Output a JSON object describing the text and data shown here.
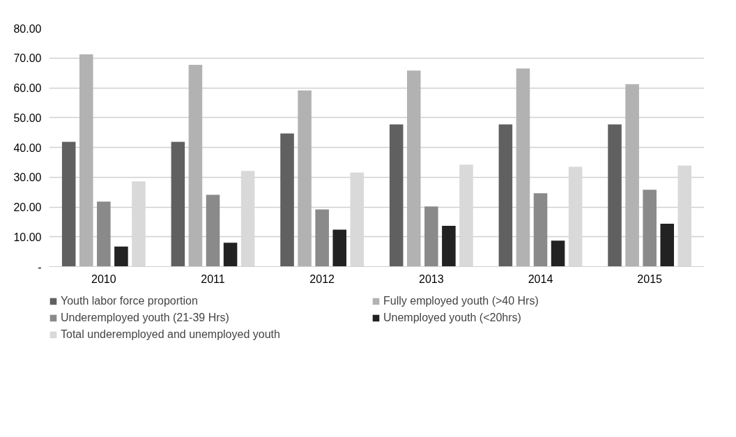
{
  "chart_data": {
    "type": "bar",
    "categories": [
      "2010",
      "2011",
      "2012",
      "2013",
      "2014",
      "2015"
    ],
    "series": [
      {
        "name": "Youth labor force proportion",
        "color": "#606060",
        "values": [
          41.9,
          41.9,
          44.7,
          47.7,
          47.7,
          47.7
        ]
      },
      {
        "name": "Fully employed youth (>40 Hrs)",
        "color": "#b2b2b2",
        "values": [
          71.2,
          67.7,
          59.1,
          65.8,
          66.5,
          61.2
        ]
      },
      {
        "name": "Underemployed youth (21-39 Hrs)",
        "color": "#8a8a8a",
        "values": [
          21.8,
          24.1,
          19.2,
          20.2,
          24.6,
          25.8
        ]
      },
      {
        "name": "Unemployed youth (<20hrs)",
        "color": "#222222",
        "values": [
          6.7,
          8.0,
          12.4,
          13.7,
          8.7,
          14.4
        ]
      },
      {
        "name": "Total underemployed and unemployed youth",
        "color": "#d9d9d9",
        "values": [
          28.6,
          32.1,
          31.6,
          34.2,
          33.5,
          33.9
        ]
      }
    ],
    "ylim": [
      0,
      80
    ],
    "yticks": [
      {
        "value": 0,
        "label": "-"
      },
      {
        "value": 10,
        "label": "10.00"
      },
      {
        "value": 20,
        "label": "20.00"
      },
      {
        "value": 30,
        "label": "30.00"
      },
      {
        "value": 40,
        "label": "40.00"
      },
      {
        "value": 50,
        "label": "50.00"
      },
      {
        "value": 60,
        "label": "60.00"
      },
      {
        "value": 70,
        "label": "70.00"
      },
      {
        "value": 80,
        "label": "80.00"
      }
    ],
    "grid": "y",
    "legend": "bottom"
  }
}
